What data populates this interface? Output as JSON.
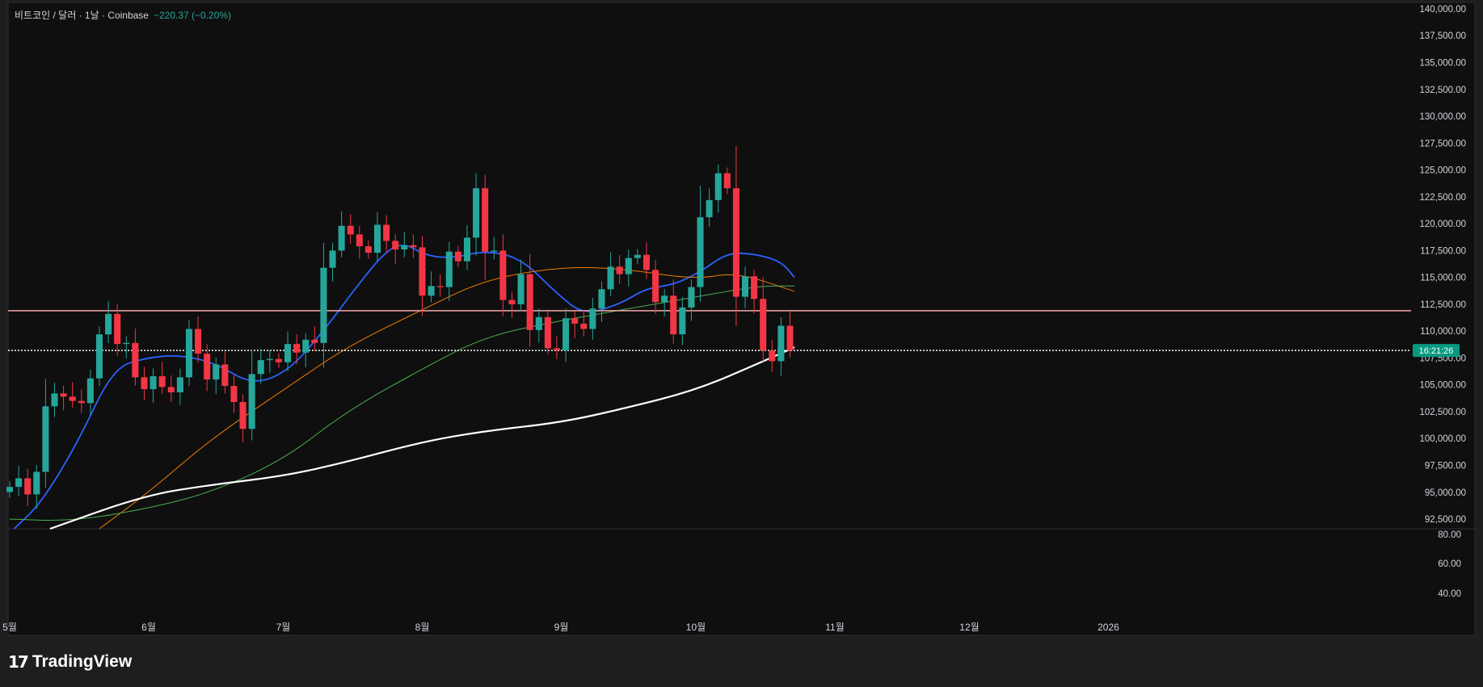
{
  "header": {
    "symbol_line": "비트코인 / 달러 · 1날 · Coinbase",
    "change": "−220.37 (−0.20%)"
  },
  "brand": {
    "name": "TradingView",
    "logo_icon": "tradingview-logo-icon"
  },
  "price_tag": {
    "label": "16:21:26",
    "color": "#089981"
  },
  "colors": {
    "background": "#0f0f0f",
    "up": "#26a69a",
    "down": "#f23645",
    "ma_short": "#2962ff",
    "ma_mid": "#f57c00",
    "ma_long": "#4caf50",
    "ma_200": "#ffffff",
    "resistance_line": "#f7a8a8",
    "current_line": "#ffffff"
  },
  "chart_data": {
    "type": "candlestick",
    "y_axis": {
      "ticks": [
        "140,000.00",
        "137,500.00",
        "135,000.00",
        "132,500.00",
        "130,000.00",
        "127,500.00",
        "125,000.00",
        "122,500.00",
        "120,000.00",
        "117,500.00",
        "115,000.00",
        "112,500.00",
        "110,000.00",
        "107,500.00",
        "105,000.00",
        "102,500.00",
        "100,000.00",
        "97,500.00",
        "95,000.00",
        "92,500.00"
      ],
      "ylim": [
        91600,
        140600
      ]
    },
    "sub_axis": {
      "ticks": [
        "80.00",
        "60.00",
        "40.00"
      ]
    },
    "x_axis": {
      "labels": [
        {
          "text": "5월",
          "date": "2025-05-01"
        },
        {
          "text": "6월",
          "date": "2025-06-01"
        },
        {
          "text": "7월",
          "date": "2025-07-01"
        },
        {
          "text": "8월",
          "date": "2025-08-01"
        },
        {
          "text": "9월",
          "date": "2025-09-01"
        },
        {
          "text": "10월",
          "date": "2025-10-01"
        },
        {
          "text": "11월",
          "date": "2025-11-01"
        },
        {
          "text": "12월",
          "date": "2025-12-01"
        },
        {
          "text": "2026",
          "date": "2026-01-01"
        }
      ]
    },
    "horizontal_lines": [
      {
        "price": 111900,
        "style": "solid",
        "color": "#f7a8a8"
      },
      {
        "price": 108200,
        "style": "dotted",
        "color": "#ffffff"
      }
    ],
    "candles": [
      {
        "date": "2025-05-01",
        "close": 95500
      },
      {
        "date": "2025-05-03",
        "close": 96300
      },
      {
        "date": "2025-05-05",
        "close": 94800
      },
      {
        "date": "2025-05-07",
        "close": 96900
      },
      {
        "date": "2025-05-09",
        "close": 103000
      },
      {
        "date": "2025-05-11",
        "close": 104200
      },
      {
        "date": "2025-05-13",
        "close": 103900
      },
      {
        "date": "2025-05-15",
        "close": 103500
      },
      {
        "date": "2025-05-17",
        "close": 103300
      },
      {
        "date": "2025-05-19",
        "close": 105600
      },
      {
        "date": "2025-05-21",
        "close": 109700
      },
      {
        "date": "2025-05-23",
        "close": 111600
      },
      {
        "date": "2025-05-25",
        "close": 108800
      },
      {
        "date": "2025-05-27",
        "close": 108900
      },
      {
        "date": "2025-05-29",
        "close": 105700
      },
      {
        "date": "2025-05-31",
        "close": 104600
      },
      {
        "date": "2025-06-02",
        "close": 105800
      },
      {
        "date": "2025-06-04",
        "close": 104800
      },
      {
        "date": "2025-06-06",
        "close": 104300
      },
      {
        "date": "2025-06-08",
        "close": 105700
      },
      {
        "date": "2025-06-10",
        "close": 110200
      },
      {
        "date": "2025-06-12",
        "close": 107900
      },
      {
        "date": "2025-06-14",
        "close": 105500
      },
      {
        "date": "2025-06-16",
        "close": 106900
      },
      {
        "date": "2025-06-18",
        "close": 104900
      },
      {
        "date": "2025-06-20",
        "close": 103400
      },
      {
        "date": "2025-06-22",
        "close": 100900
      },
      {
        "date": "2025-06-24",
        "close": 106000
      },
      {
        "date": "2025-06-26",
        "close": 107300
      },
      {
        "date": "2025-06-28",
        "close": 107400
      },
      {
        "date": "2025-06-30",
        "close": 107100
      },
      {
        "date": "2025-07-02",
        "close": 108800
      },
      {
        "date": "2025-07-04",
        "close": 108000
      },
      {
        "date": "2025-07-06",
        "close": 109200
      },
      {
        "date": "2025-07-08",
        "close": 108900
      },
      {
        "date": "2025-07-10",
        "close": 115900
      },
      {
        "date": "2025-07-12",
        "close": 117500
      },
      {
        "date": "2025-07-14",
        "close": 119800
      },
      {
        "date": "2025-07-16",
        "close": 119000
      },
      {
        "date": "2025-07-18",
        "close": 117900
      },
      {
        "date": "2025-07-20",
        "close": 117300
      },
      {
        "date": "2025-07-22",
        "close": 119900
      },
      {
        "date": "2025-07-24",
        "close": 118400
      },
      {
        "date": "2025-07-26",
        "close": 117600
      },
      {
        "date": "2025-07-28",
        "close": 118000
      },
      {
        "date": "2025-07-30",
        "close": 117800
      },
      {
        "date": "2025-08-01",
        "close": 113300
      },
      {
        "date": "2025-08-03",
        "close": 114200
      },
      {
        "date": "2025-08-05",
        "close": 114100
      },
      {
        "date": "2025-08-07",
        "close": 117400
      },
      {
        "date": "2025-08-09",
        "close": 116500
      },
      {
        "date": "2025-08-11",
        "close": 118700
      },
      {
        "date": "2025-08-13",
        "close": 123300
      },
      {
        "date": "2025-08-15",
        "close": 117400
      },
      {
        "date": "2025-08-17",
        "close": 117500
      },
      {
        "date": "2025-08-19",
        "close": 112900
      },
      {
        "date": "2025-08-21",
        "close": 112500
      },
      {
        "date": "2025-08-23",
        "close": 115300
      },
      {
        "date": "2025-08-25",
        "close": 110100
      },
      {
        "date": "2025-08-27",
        "close": 111300
      },
      {
        "date": "2025-08-29",
        "close": 108400
      },
      {
        "date": "2025-08-31",
        "close": 108200
      },
      {
        "date": "2025-09-02",
        "close": 111200
      },
      {
        "date": "2025-09-04",
        "close": 110700
      },
      {
        "date": "2025-09-06",
        "close": 110200
      },
      {
        "date": "2025-09-08",
        "close": 112100
      },
      {
        "date": "2025-09-10",
        "close": 113900
      },
      {
        "date": "2025-09-12",
        "close": 116000
      },
      {
        "date": "2025-09-14",
        "close": 115300
      },
      {
        "date": "2025-09-16",
        "close": 116800
      },
      {
        "date": "2025-09-18",
        "close": 117100
      },
      {
        "date": "2025-09-20",
        "close": 115700
      },
      {
        "date": "2025-09-22",
        "close": 112700
      },
      {
        "date": "2025-09-24",
        "close": 113300
      },
      {
        "date": "2025-09-26",
        "close": 109700
      },
      {
        "date": "2025-09-28",
        "close": 112200
      },
      {
        "date": "2025-09-30",
        "close": 114100
      },
      {
        "date": "2025-10-02",
        "close": 120600
      },
      {
        "date": "2025-10-04",
        "close": 122200
      },
      {
        "date": "2025-10-06",
        "close": 124700
      },
      {
        "date": "2025-10-08",
        "close": 123300
      },
      {
        "date": "2025-10-10",
        "close": 113200
      },
      {
        "date": "2025-10-12",
        "close": 115100
      },
      {
        "date": "2025-10-14",
        "close": 113000
      },
      {
        "date": "2025-10-16",
        "close": 108200
      },
      {
        "date": "2025-10-18",
        "close": 107200
      },
      {
        "date": "2025-10-20",
        "close": 110500
      },
      {
        "date": "2025-10-22",
        "close": 108200
      }
    ],
    "moving_averages": [
      {
        "color": "#2962ff",
        "points": [
          [
            "2025-05-02",
            91600
          ],
          [
            "2025-05-08",
            94000
          ],
          [
            "2025-05-16",
            99500
          ],
          [
            "2025-05-24",
            106500
          ],
          [
            "2025-05-31",
            107500
          ],
          [
            "2025-06-08",
            107800
          ],
          [
            "2025-06-16",
            107000
          ],
          [
            "2025-06-24",
            105000
          ],
          [
            "2025-07-02",
            106200
          ],
          [
            "2025-07-10",
            110000
          ],
          [
            "2025-07-18",
            114500
          ],
          [
            "2025-07-24",
            117500
          ],
          [
            "2025-07-28",
            118200
          ],
          [
            "2025-08-02",
            117000
          ],
          [
            "2025-08-08",
            116800
          ],
          [
            "2025-08-15",
            117500
          ],
          [
            "2025-08-23",
            116800
          ],
          [
            "2025-08-31",
            113500
          ],
          [
            "2025-09-06",
            111500
          ],
          [
            "2025-09-14",
            112500
          ],
          [
            "2025-09-20",
            114000
          ],
          [
            "2025-09-26",
            114300
          ],
          [
            "2025-10-02",
            115500
          ],
          [
            "2025-10-08",
            117300
          ],
          [
            "2025-10-14",
            117200
          ],
          [
            "2025-10-20",
            116500
          ],
          [
            "2025-10-23",
            115000
          ]
        ]
      },
      {
        "color": "#f57c00",
        "points": [
          [
            "2025-05-21",
            91600
          ],
          [
            "2025-06-01",
            95000
          ],
          [
            "2025-06-15",
            100000
          ],
          [
            "2025-07-01",
            104500
          ],
          [
            "2025-07-15",
            108500
          ],
          [
            "2025-08-01",
            112000
          ],
          [
            "2025-08-15",
            114800
          ],
          [
            "2025-09-01",
            116000
          ],
          [
            "2025-09-15",
            115800
          ],
          [
            "2025-10-01",
            114800
          ],
          [
            "2025-10-10",
            115500
          ],
          [
            "2025-10-23",
            113700
          ]
        ]
      },
      {
        "color": "#4caf50",
        "points": [
          [
            "2025-05-01",
            92500
          ],
          [
            "2025-05-15",
            92300
          ],
          [
            "2025-06-01",
            93500
          ],
          [
            "2025-06-15",
            95000
          ],
          [
            "2025-07-01",
            98000
          ],
          [
            "2025-07-15",
            102500
          ],
          [
            "2025-08-01",
            106500
          ],
          [
            "2025-08-15",
            109500
          ],
          [
            "2025-09-01",
            111000
          ],
          [
            "2025-09-15",
            112000
          ],
          [
            "2025-10-01",
            113200
          ],
          [
            "2025-10-15",
            114200
          ],
          [
            "2025-10-23",
            114200
          ]
        ]
      },
      {
        "color": "#ffffff",
        "points": [
          [
            "2025-05-10",
            91600
          ],
          [
            "2025-05-31",
            94700
          ],
          [
            "2025-06-15",
            95700
          ],
          [
            "2025-07-01",
            96500
          ],
          [
            "2025-07-15",
            97800
          ],
          [
            "2025-08-01",
            99700
          ],
          [
            "2025-08-15",
            100700
          ],
          [
            "2025-09-01",
            101500
          ],
          [
            "2025-09-15",
            102800
          ],
          [
            "2025-10-01",
            104500
          ],
          [
            "2025-10-15",
            107000
          ],
          [
            "2025-10-23",
            108500
          ]
        ]
      }
    ]
  }
}
